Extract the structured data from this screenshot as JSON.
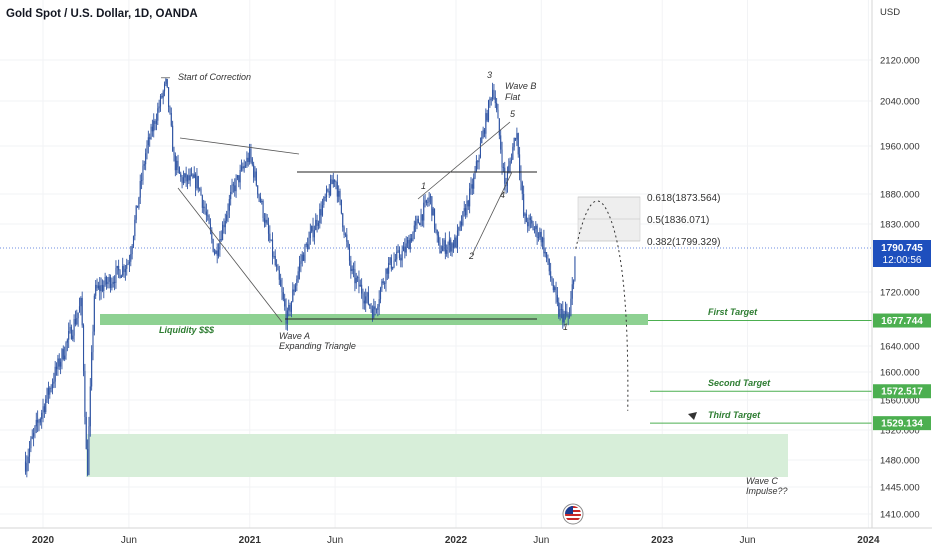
{
  "chart_title": "Gold Spot / U.S. Dollar, 1D, OANDA",
  "currency": "USD",
  "price_badge": {
    "price": "1790.745",
    "countdown": "12:00:56"
  },
  "annotations": {
    "start_of_correction": "Start of Correction",
    "wave_b": "Wave B",
    "flat": "Flat",
    "wave_a": "Wave A",
    "expanding_triangle": "Expanding Triangle",
    "liquidity": "Liquidity $$$",
    "wave_c": "Wave C",
    "impulse": "Impulse??",
    "wave_numbers": [
      "3",
      "5",
      "1",
      "4",
      "2",
      "1"
    ]
  },
  "fib_levels": [
    {
      "label": "0.618(1873.564)",
      "value": 1873.564
    },
    {
      "label": "0.5(1836.071)",
      "value": 1836.071
    },
    {
      "label": "0.382(1799.329)",
      "value": 1799.329
    }
  ],
  "targets": [
    {
      "name": "First Target",
      "price": "1677.744",
      "value": 1677.744
    },
    {
      "name": "Second Target",
      "price": "1572.517",
      "value": 1572.517
    },
    {
      "name": "Third Target",
      "price": "1529.134",
      "value": 1529.134
    }
  ],
  "colors": {
    "candle": "#2f54a3",
    "target": "#4caf50",
    "target_text": "#2e7d32",
    "zone": "#bfe6c1",
    "badge": "#1e4fbd",
    "fib_box": "#ededed"
  },
  "chart_data": {
    "type": "line",
    "title": "Gold Spot / U.S. Dollar, 1D, OANDA",
    "y_axis": {
      "unit": "USD",
      "ticks": [
        "2120.000",
        "2040.000",
        "1960.000",
        "1880.000",
        "1830.000",
        "1720.000",
        "1640.000",
        "1600.000",
        "1560.000",
        "1520.000",
        "1480.000",
        "1445.000",
        "1410.000"
      ]
    },
    "x_axis": {
      "ticks": [
        "2020",
        "Jun",
        "2021",
        "Jun",
        "2022",
        "Jun",
        "2023",
        "Jun",
        "2024"
      ]
    },
    "price_path": {
      "x": [
        "2019-12",
        "2020-01",
        "2020-03-09",
        "2020-03-19",
        "2020-04",
        "2020-05",
        "2020-06",
        "2020-07",
        "2020-08-06",
        "2020-08-20",
        "2020-09",
        "2020-10",
        "2020-11",
        "2020-12",
        "2021-01",
        "2021-03-08",
        "2021-04",
        "2021-06-01",
        "2021-06-30",
        "2021-08-09",
        "2021-09",
        "2021-10",
        "2021-11-16",
        "2021-12",
        "2022-01",
        "2022-02",
        "2022-03-08",
        "2022-03-29",
        "2022-04-18",
        "2022-05",
        "2022-06",
        "2022-07",
        "2022-07-21",
        "2022-08"
      ],
      "y": [
        1478,
        1550,
        1703,
        1452,
        1720,
        1740,
        1770,
        1950,
        2075,
        1935,
        1905,
        1900,
        1780,
        1885,
        1945,
        1678,
        1770,
        1910,
        1750,
        1690,
        1760,
        1785,
        1875,
        1790,
        1800,
        1900,
        2070,
        1890,
        1990,
        1840,
        1810,
        1690,
        1680,
        1790
      ]
    },
    "projection_path": {
      "x": [
        "2022-08",
        "2022-09",
        "2022-11"
      ],
      "y": [
        1790,
        1845,
        1535
      ]
    },
    "legend": "none",
    "grid": true
  }
}
